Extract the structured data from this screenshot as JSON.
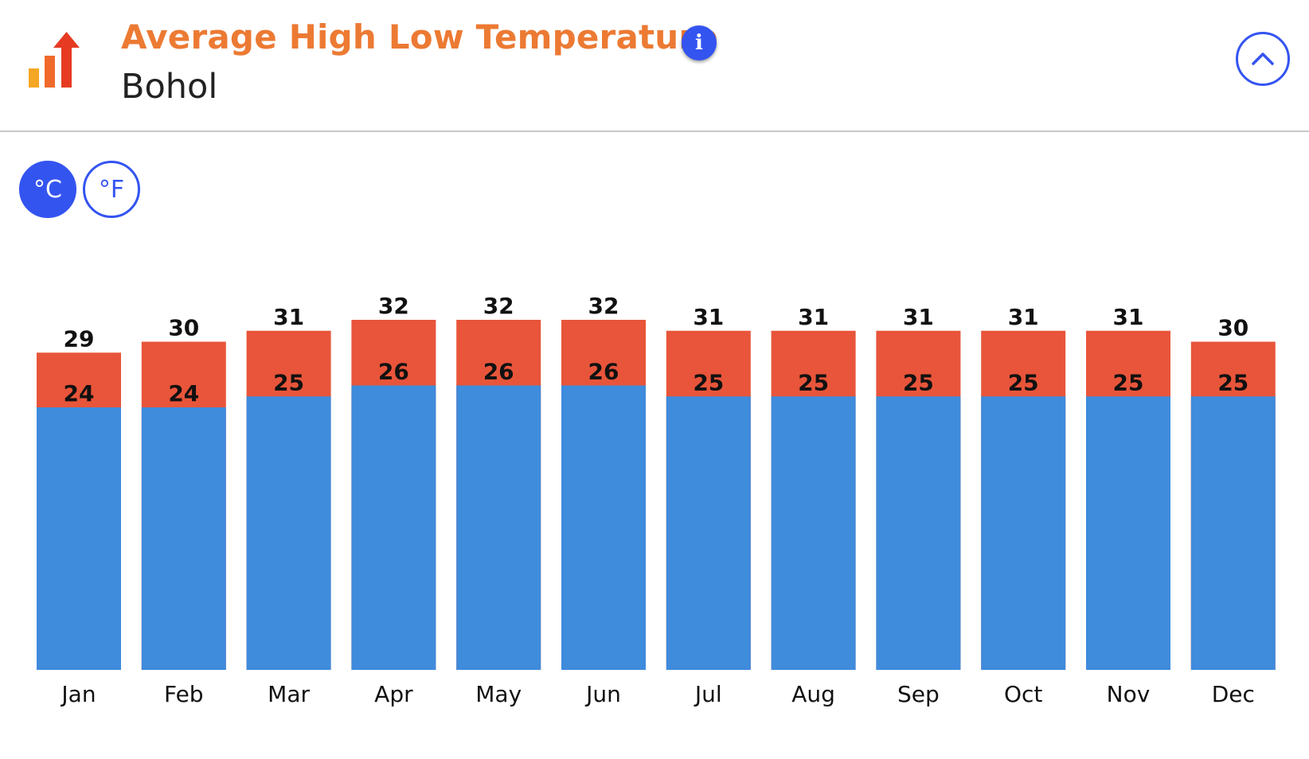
{
  "header": {
    "title": "Average High Low Temperature",
    "subtitle": "Bohol",
    "info_icon": "info-icon",
    "collapse_icon": "chevron-up-icon",
    "logo_icon": "bar-chart-up-arrow-icon"
  },
  "units": {
    "celsius_label": "°C",
    "fahrenheit_label": "°F",
    "selected": "celsius"
  },
  "colors": {
    "high": "#e8553a",
    "low": "#3f8bdc",
    "title": "#ec7a33",
    "accent": "#3454f0"
  },
  "chart_data": {
    "type": "bar",
    "title": "Average High Low Temperature",
    "categories": [
      "Jan",
      "Feb",
      "Mar",
      "Apr",
      "May",
      "Jun",
      "Jul",
      "Aug",
      "Sep",
      "Oct",
      "Nov",
      "Dec"
    ],
    "series": [
      {
        "values": [
          29,
          30,
          31,
          32,
          32,
          32,
          31,
          31,
          31,
          31,
          31,
          30
        ]
      },
      {
        "values": [
          24,
          24,
          25,
          26,
          26,
          26,
          25,
          25,
          25,
          25,
          25,
          25
        ]
      }
    ],
    "grid": false
  }
}
